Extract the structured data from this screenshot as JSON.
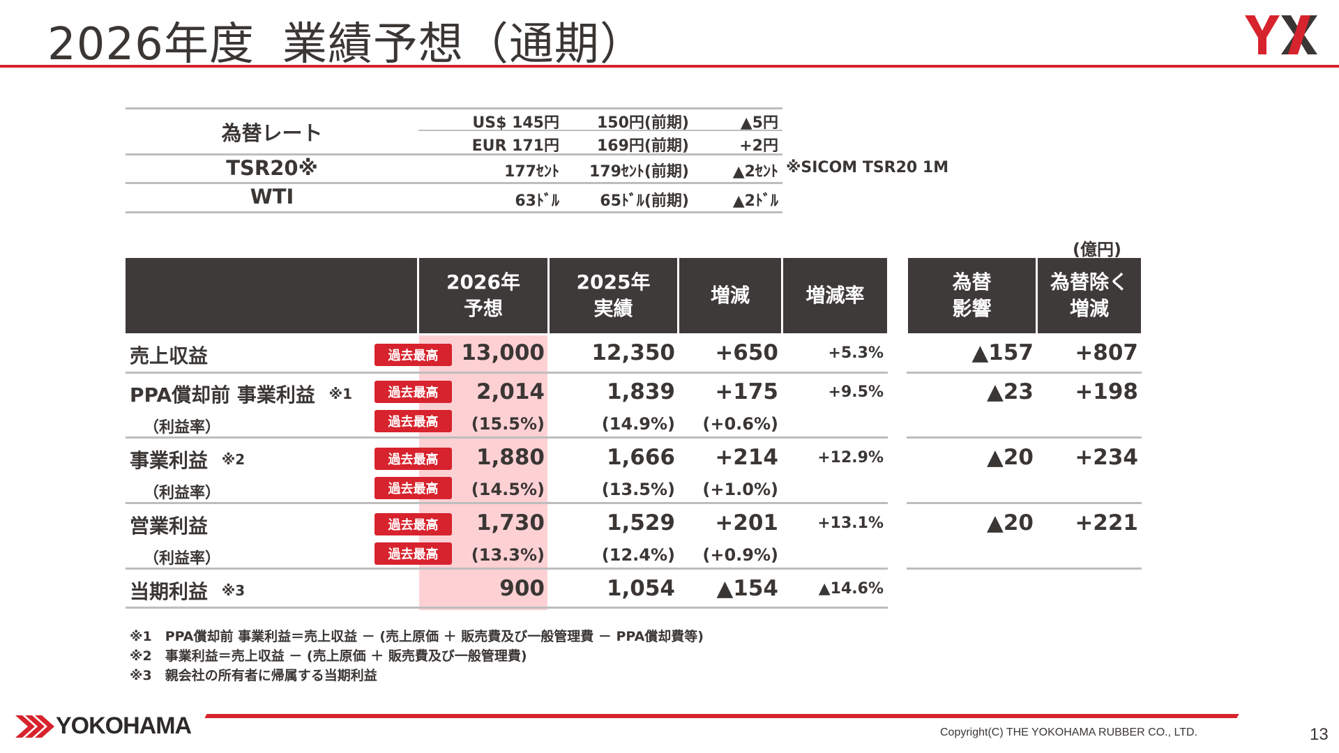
{
  "title": {
    "year": "2026年度",
    "main": "業績予想（通期）"
  },
  "brand": {
    "accent": "#d7232d",
    "header_bg": "#3e3a39",
    "highlight": "#fdd0d4"
  },
  "fx_table": {
    "fx_label": "為替レート",
    "usd": {
      "forecast": "US$ 145円",
      "prior": "150円(前期)",
      "diff": "▲5円"
    },
    "eur": {
      "forecast": "EUR 171円",
      "prior": "169円(前期)",
      "diff": "+2円"
    },
    "tsr": {
      "label": "TSR20※",
      "forecast": "177ｾﾝﾄ",
      "prior": "179ｾﾝﾄ(前期)",
      "diff": "▲2ｾﾝﾄ",
      "note": "※SICOM TSR20 1M"
    },
    "wti": {
      "label": "WTI",
      "forecast": "63ﾄﾞﾙ",
      "prior": "65ﾄﾞﾙ(前期)",
      "diff": "▲2ﾄﾞﾙ"
    }
  },
  "unit": "(億円)",
  "headers": {
    "forecast": "2026年\n予想",
    "actual": "2025年\n実績",
    "change": "増減",
    "change_rate": "増減率",
    "fx_impact": "為替\n影響",
    "ex_fx": "為替除く\n増減"
  },
  "badge_label": "過去最高",
  "rows": [
    {
      "label": "売上収益",
      "forecast": "13,000",
      "actual": "12,350",
      "change": "+650",
      "rate": "+5.3%",
      "fx": "▲157",
      "exfx": "+807"
    },
    {
      "label": "PPA償却前 事業利益",
      "mark": "※1",
      "forecast": "2,014",
      "actual": "1,839",
      "change": "+175",
      "rate": "+9.5%",
      "fx": "▲23",
      "exfx": "+198",
      "sub_label": "（利益率）",
      "sub_forecast": "(15.5%)",
      "sub_actual": "(14.9%)",
      "sub_change": "(+0.6%)"
    },
    {
      "label": "事業利益",
      "mark": "※2",
      "forecast": "1,880",
      "actual": "1,666",
      "change": "+214",
      "rate": "+12.9%",
      "fx": "▲20",
      "exfx": "+234",
      "sub_label": "（利益率）",
      "sub_forecast": "(14.5%)",
      "sub_actual": "(13.5%)",
      "sub_change": "(+1.0%)"
    },
    {
      "label": "営業利益",
      "forecast": "1,730",
      "actual": "1,529",
      "change": "+201",
      "rate": "+13.1%",
      "fx": "▲20",
      "exfx": "+221",
      "sub_label": "（利益率）",
      "sub_forecast": "(13.3%)",
      "sub_actual": "(12.4%)",
      "sub_change": "(+0.9%)"
    },
    {
      "label": "当期利益",
      "mark": "※3",
      "forecast": "900",
      "actual": "1,054",
      "change": "▲154",
      "rate": "▲14.6%"
    }
  ],
  "notes": [
    "※1　PPA償却前 事業利益＝売上収益 － (売上原価 ＋ 販売費及び一般管理費 － PPA償却費等)",
    "※2　事業利益＝売上収益 － (売上原価 ＋ 販売費及び一般管理費)",
    "※3　親会社の所有者に帰属する当期利益"
  ],
  "footer": {
    "brand": "YOKOHAMA",
    "copyright": "Copyright(C) THE YOKOHAMA RUBBER CO., LTD.",
    "page": "13"
  }
}
